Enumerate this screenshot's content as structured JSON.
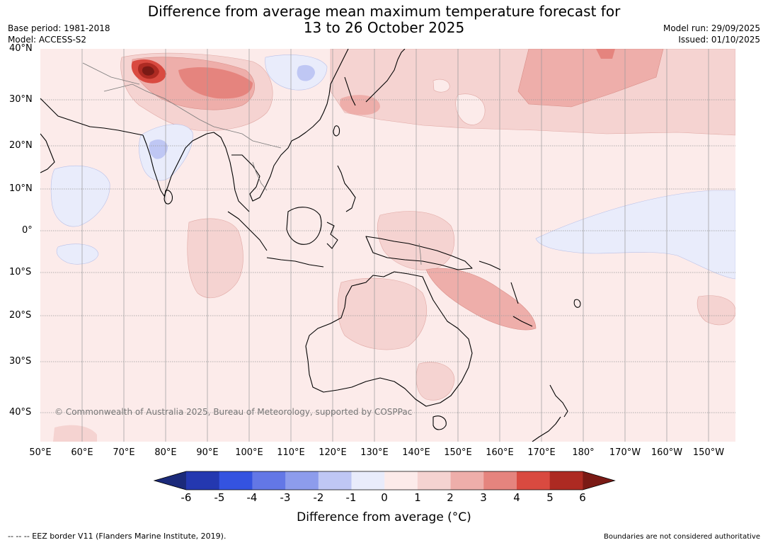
{
  "header": {
    "title_line1": "Difference from average mean maximum temperature forecast for",
    "title_line2": "13 to 26 October 2025",
    "base_period": "Base period: 1981-2018",
    "model": "Model: ACCESS-S2",
    "model_run": "Model run: 29/09/2025",
    "issued": "Issued: 01/10/2025"
  },
  "map": {
    "copyright": "© Commonwealth of Australia 2025, Bureau of Meteorology, supported by COSPPac",
    "lat_labels": [
      "40°N",
      "30°N",
      "20°N",
      "10°N",
      "0°",
      "10°S",
      "20°S",
      "30°S",
      "40°S"
    ],
    "lon_labels": [
      "50°E",
      "60°E",
      "70°E",
      "80°E",
      "90°E",
      "100°E",
      "110°E",
      "120°E",
      "130°E",
      "140°E",
      "150°E",
      "160°E",
      "170°E",
      "180°",
      "170°W",
      "160°W",
      "150°W"
    ]
  },
  "colorbar": {
    "label": "Difference from average ($^\\circ$C)",
    "label_display": "Difference from average (°C)",
    "ticks": [
      "-6",
      "-5",
      "-4",
      "-3",
      "-2",
      "-1",
      "0",
      "1",
      "2",
      "3",
      "4",
      "5",
      "6"
    ],
    "colors": [
      "#1b2a7a",
      "#2438b0",
      "#3453e0",
      "#6377e6",
      "#8d9cec",
      "#bfc7f4",
      "#e9ecfb",
      "#fcebea",
      "#f5d3d1",
      "#eeaeaa",
      "#e5847e",
      "#d94a40",
      "#ad2a22",
      "#7a1a15"
    ]
  },
  "footer": {
    "eez_legend": "--  --  -- EEZ border V11 (Flanders Marine Institute, 2019).",
    "boundaries_note": "Boundaries are not considered authoritative"
  }
}
